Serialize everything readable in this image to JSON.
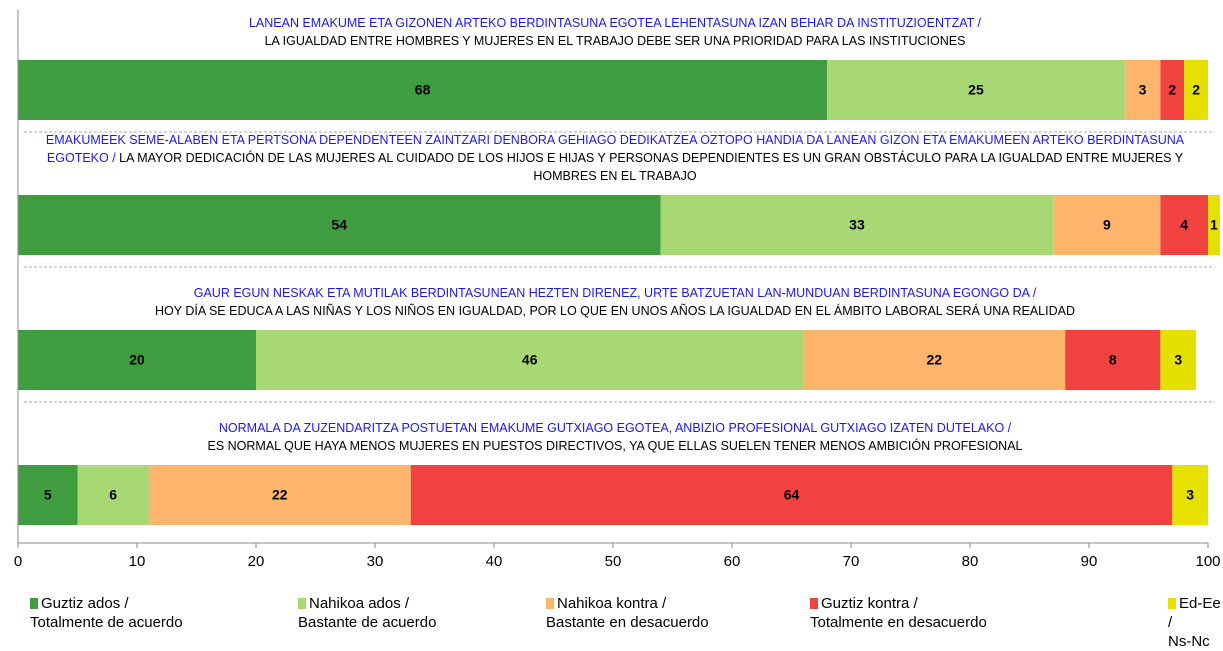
{
  "chart_data": {
    "type": "stacked-barh",
    "categories": [
      {
        "eu": "LANEAN EMAKUME ETA GIZONEN ARTEKO BERDINTASUNA EGOTEA LEHENTASUNA IZAN BEHAR DA INSTITUZIOENTZAT /",
        "es": "LA IGUALDAD ENTRE HOMBRES Y MUJERES EN EL TRABAJO DEBE SER UNA PRIORIDAD PARA LAS INSTITUCIONES"
      },
      {
        "eu": "EMAKUMEEK SEME-ALABEN ETA PERTSONA DEPENDENTEEN ZAINTZARI DENBORA GEHIAGO DEDIKATZEA OZTOPO HANDIA DA LANEAN GIZON ETA EMAKUMEEN ARTEKO BERDINTASUNA EGOTEKO /",
        "es": "LA MAYOR DEDICACIÓN DE LAS MUJERES AL CUIDADO DE LOS HIJOS E HIJAS Y PERSONAS DEPENDIENTES ES UN GRAN OBSTÁCULO PARA LA IGUALDAD ENTRE MUJERES Y HOMBRES EN EL TRABAJO"
      },
      {
        "eu": "GAUR EGUN NESKAK ETA MUTILAK BERDINTASUNEAN HEZTEN DIRENEZ, URTE BATZUETAN LAN-MUNDUAN BERDINTASUNA EGONGO DA /",
        "es": "HOY DÍA SE EDUCA A LAS NIÑAS Y LOS NIÑOS EN IGUALDAD, POR LO QUE EN UNOS AÑOS LA IGUALDAD EN EL ÁMBITO LABORAL SERÁ UNA REALIDAD"
      },
      {
        "eu": "NORMALA DA ZUZENDARITZA POSTUETAN EMAKUME GUTXIAGO EGOTEA, ANBIZIO PROFESIONAL GUTXIAGO IZATEN DUTELAKO /",
        "es": "ES NORMAL QUE HAYA MENOS MUJERES EN PUESTOS DIRECTIVOS, YA QUE ELLAS SUELEN TENER MENOS AMBICIÓN PROFESIONAL"
      }
    ],
    "series": [
      {
        "name": "Guztiz ados /\nTotalmente de acuerdo",
        "color": "#3f9c3f",
        "values": [
          68,
          54,
          20,
          5
        ]
      },
      {
        "name": "Nahikoa ados /\nBastante de acuerdo",
        "color": "#a8d873",
        "values": [
          25,
          33,
          46,
          6
        ]
      },
      {
        "name": "Nahikoa kontra /\nBastante en desacuerdo",
        "color": "#fdb56c",
        "values": [
          3,
          9,
          22,
          22
        ]
      },
      {
        "name": "Guztiz kontra /\nTotalmente en desacuerdo",
        "color": "#f0423f",
        "values": [
          2,
          4,
          8,
          64
        ]
      },
      {
        "name": "Ed-Ee /\nNs-Nc",
        "color": "#e6e000",
        "values": [
          2,
          1,
          3,
          3
        ]
      }
    ],
    "xlim": [
      0,
      100
    ],
    "xticks": [
      0,
      10,
      20,
      30,
      40,
      50,
      60,
      70,
      80,
      90,
      100
    ]
  }
}
